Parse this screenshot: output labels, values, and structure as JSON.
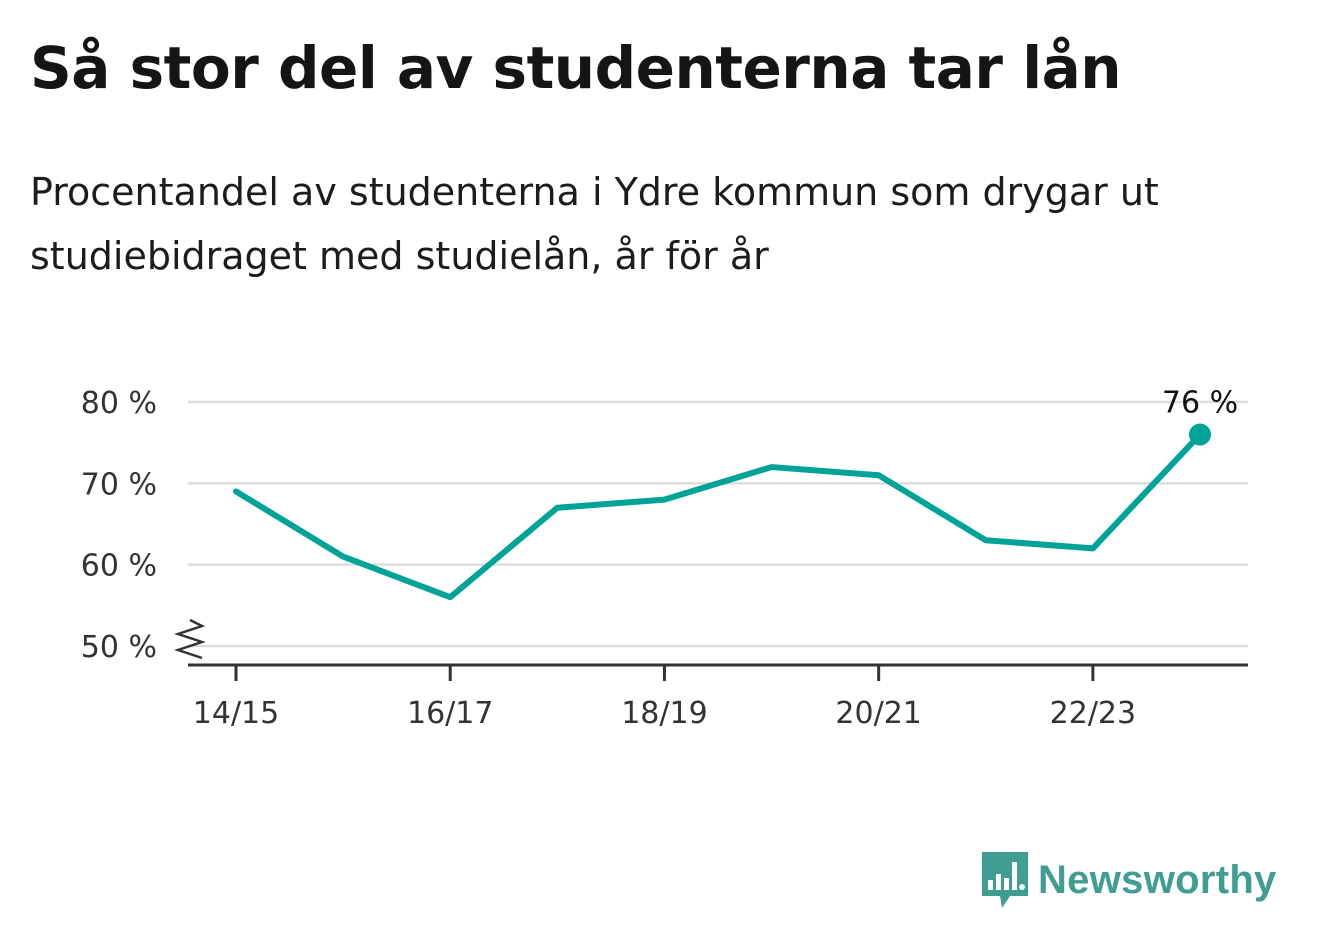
{
  "title": "Så stor del av studenterna tar lån",
  "subtitle": "Procentandel av studenterna i Ydre kommun som drygar ut studiebidraget med studielån, år för år",
  "brand": {
    "name": "Newsworthy",
    "color": "#3f9d92",
    "icon": "bar-chart-speech-bubble-icon"
  },
  "colors": {
    "line": "#00a398",
    "grid": "#dddddd",
    "axis": "#333333"
  },
  "chart_data": {
    "type": "line",
    "title": "Så stor del av studenterna tar lån",
    "subtitle": "Procentandel av studenterna i Ydre kommun som drygar ut studiebidraget med studielån, år för år",
    "xlabel": "",
    "ylabel": "",
    "x": [
      "14/15",
      "15/16",
      "16/17",
      "17/18",
      "18/19",
      "19/20",
      "20/21",
      "21/22",
      "22/23",
      "23/24"
    ],
    "x_tick_labels": [
      "14/15",
      "16/17",
      "18/19",
      "20/21",
      "22/23"
    ],
    "y_tick_values": [
      50,
      60,
      70,
      80
    ],
    "y_tick_labels": [
      "50 %",
      "60 %",
      "70 %",
      "80 %"
    ],
    "ylim": [
      48,
      80
    ],
    "y_axis_break": true,
    "grid": true,
    "series": [
      {
        "values": [
          69,
          61,
          56,
          67,
          68,
          72,
          71,
          63,
          62,
          76
        ]
      }
    ],
    "data_labels": [
      {
        "index": 9,
        "text": "76 %"
      }
    ]
  }
}
